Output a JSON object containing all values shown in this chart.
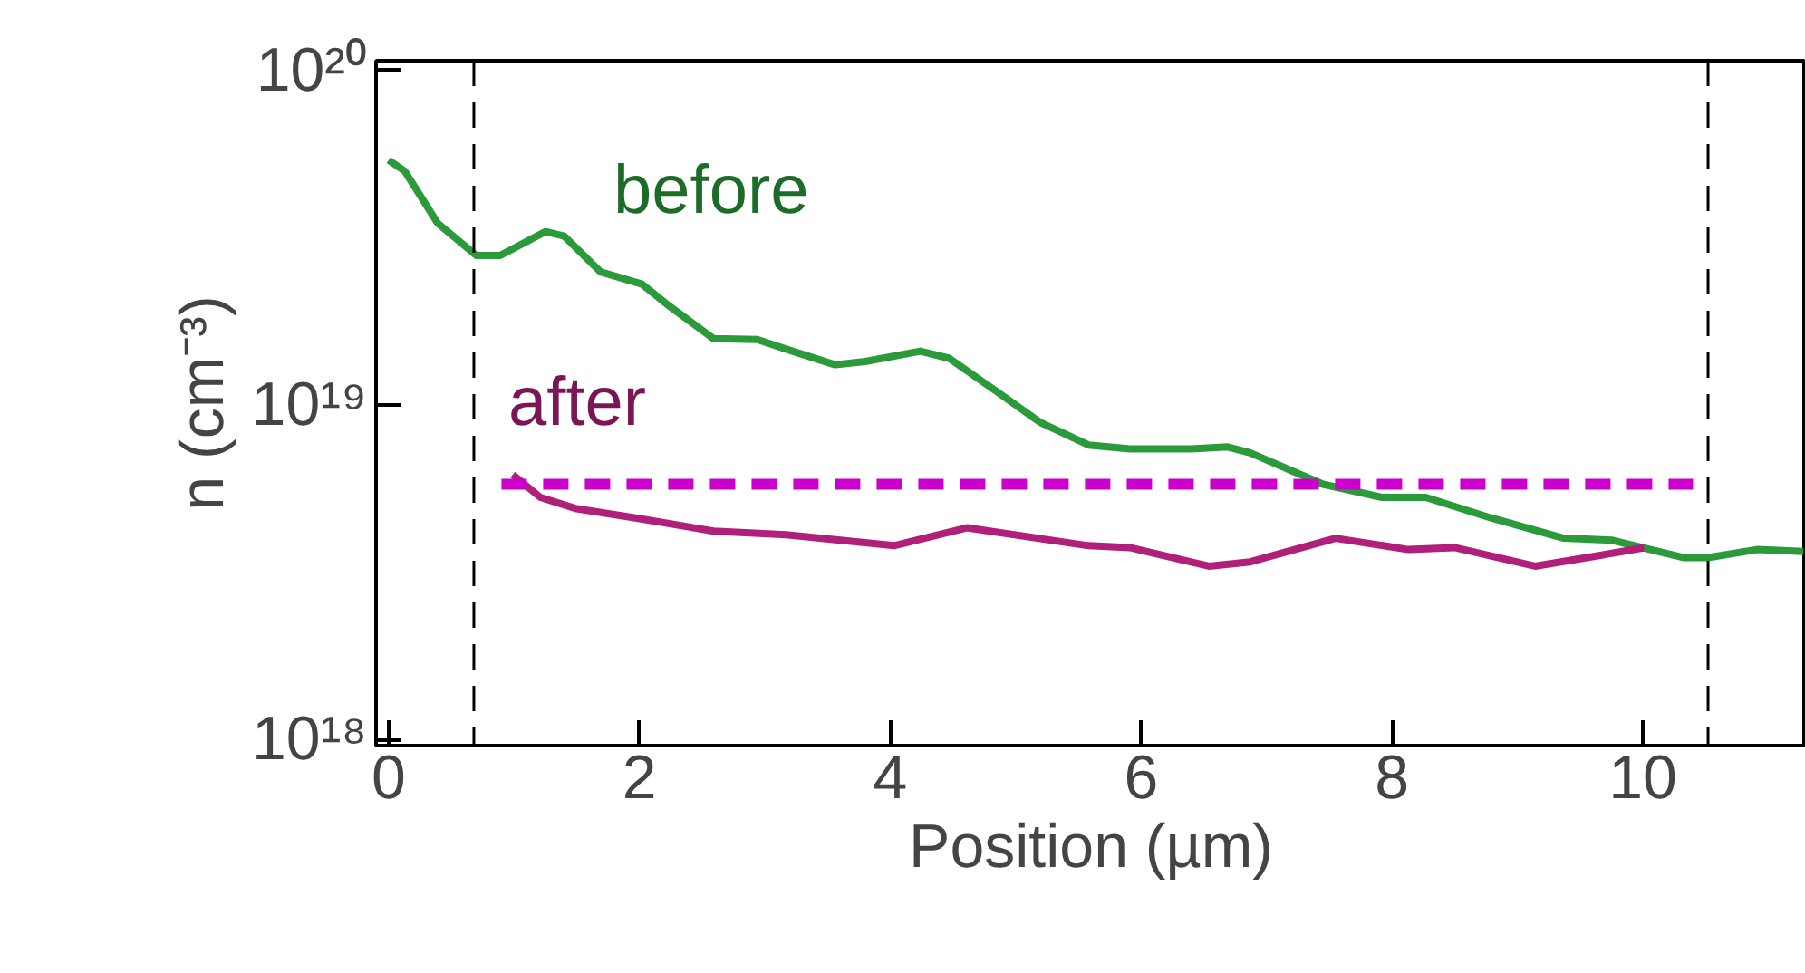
{
  "chart_data": {
    "type": "line",
    "xlabel": "Position (µm)",
    "ylabel": "n (cm⁻³)",
    "log": "y",
    "grid": false,
    "line_style": "solid",
    "marker": "none",
    "xlim": [
      -0.1,
      11.3
    ],
    "xticks": [
      0,
      2,
      4,
      6,
      8,
      10
    ],
    "ylim": [
      9.6e+17,
      1.07e+20
    ],
    "yticks": [
      {
        "value": 1e+18,
        "label": "10¹⁸"
      },
      {
        "value": 1e+19,
        "label": "10¹⁹"
      },
      {
        "value": 1e+20,
        "label": "10²⁰"
      }
    ],
    "series": [
      {
        "name": "before",
        "color": "#2a9a3a",
        "x": [
          0,
          0.13,
          0.39,
          0.7,
          0.89,
          1.25,
          1.4,
          1.69,
          2.02,
          2.22,
          2.59,
          2.94,
          3.17,
          3.56,
          3.8,
          4.24,
          4.47,
          4.86,
          5.19,
          5.58,
          5.91,
          6.4,
          6.69,
          6.87,
          7.45,
          7.92,
          8.27,
          8.79,
          9.37,
          9.75,
          10.33,
          10.52,
          10.91,
          11.28
        ],
        "values": [
          5.4e+19,
          5e+19,
          3.5e+19,
          2.8e+19,
          2.8e+19,
          3.3e+19,
          3.2e+19,
          2.5e+19,
          2.3e+19,
          2e+19,
          1.58e+19,
          1.57e+19,
          1.47e+19,
          1.32e+19,
          1.35e+19,
          1.45e+19,
          1.38e+19,
          1.09e+19,
          8.9e+18,
          7.6e+18,
          7.4e+18,
          7.4e+18,
          7.5e+18,
          7.2e+18,
          5.8e+18,
          5.3e+18,
          5.3e+18,
          4.6e+18,
          4e+18,
          3.95e+18,
          3.5e+18,
          3.5e+18,
          3.7e+18,
          3.65e+18
        ]
      },
      {
        "name": "after",
        "color": "#b0207a",
        "x": [
          0.99,
          1.21,
          1.5,
          1.97,
          2.59,
          3.17,
          4.03,
          4.61,
          5.58,
          5.91,
          6.54,
          6.87,
          7.55,
          8.13,
          8.5,
          9.14,
          9.65,
          10.01
        ],
        "values": [
          6.2e+18,
          5.3e+18,
          4.9e+18,
          4.6e+18,
          4.2e+18,
          4.1e+18,
          3.8e+18,
          4.3e+18,
          3.8e+18,
          3.75e+18,
          3.3e+18,
          3.4e+18,
          4e+18,
          3.7e+18,
          3.75e+18,
          3.3e+18,
          3.55e+18,
          3.75e+18
        ]
      },
      {
        "color": "#cc00cc",
        "line_style": "dashed",
        "x": [
          0.9,
          10.4
        ],
        "values": [
          5.8e+18,
          5.8e+18
        ]
      }
    ],
    "ref_lines": [
      {
        "axis": "x",
        "value": 0.68,
        "color": "#000000",
        "line_style": "dashed"
      },
      {
        "axis": "x",
        "value": 10.52,
        "color": "#000000",
        "line_style": "dashed"
      }
    ]
  }
}
